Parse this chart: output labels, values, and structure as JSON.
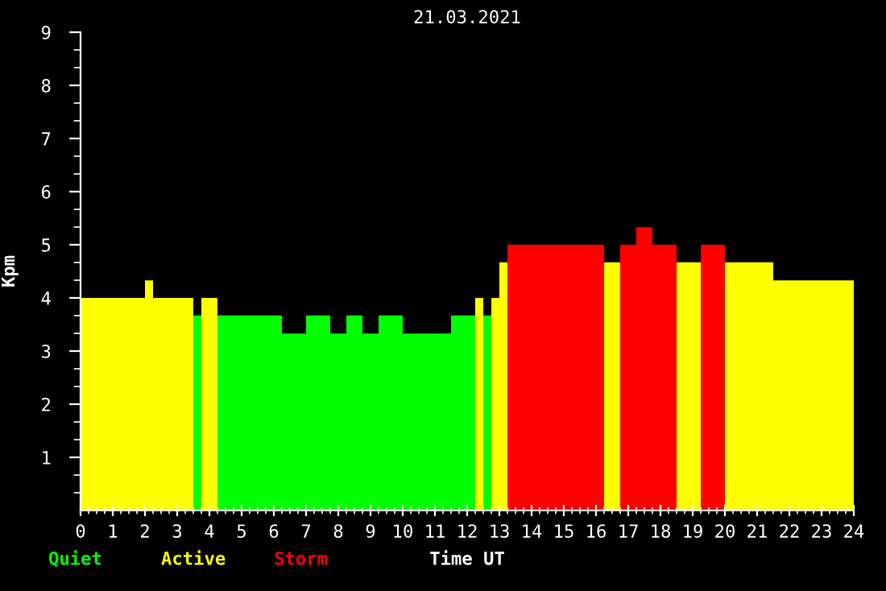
{
  "chart_data": {
    "type": "bar",
    "title": "21.03.2021",
    "xlabel": "Time UT",
    "ylabel": "Kpm",
    "series": [
      {
        "name": "Quiet",
        "color": "#00ff00",
        "x": [
          3.625,
          5.25,
          6.625,
          7.375,
          8,
          8.5,
          9,
          9.625,
          10.75,
          11.875,
          12.625
        ],
        "values": [
          3.67,
          3.67,
          3.33,
          3.67,
          3.33,
          3.67,
          3.33,
          3.67,
          3.33,
          3.67,
          3.67
        ]
      },
      {
        "name": "Active",
        "color": "#ffff00",
        "x": [
          1,
          2.125,
          2.875,
          4,
          12.375,
          12.875,
          13.125,
          16.5,
          18.875,
          20.75,
          22.75
        ],
        "values": [
          4,
          4.33,
          4,
          4,
          4,
          4,
          4.67,
          4.67,
          4.67,
          4.67,
          4.33
        ]
      },
      {
        "name": "Storm",
        "color": "#ff0000",
        "x": [
          14.75,
          17,
          17.5,
          18.125,
          19.625
        ],
        "values": [
          5,
          5,
          5.33,
          5,
          5
        ]
      }
    ],
    "xlim": [
      0,
      24
    ],
    "xticks": [
      0,
      1,
      2,
      3,
      4,
      5,
      6,
      7,
      8,
      9,
      10,
      11,
      12,
      13,
      14,
      15,
      16,
      17,
      18,
      19,
      20,
      21,
      22,
      23,
      24
    ],
    "ylim": [
      0,
      9
    ],
    "yticks": [
      1,
      2,
      3,
      4,
      5,
      6,
      7,
      8,
      9
    ],
    "grid": false
  }
}
